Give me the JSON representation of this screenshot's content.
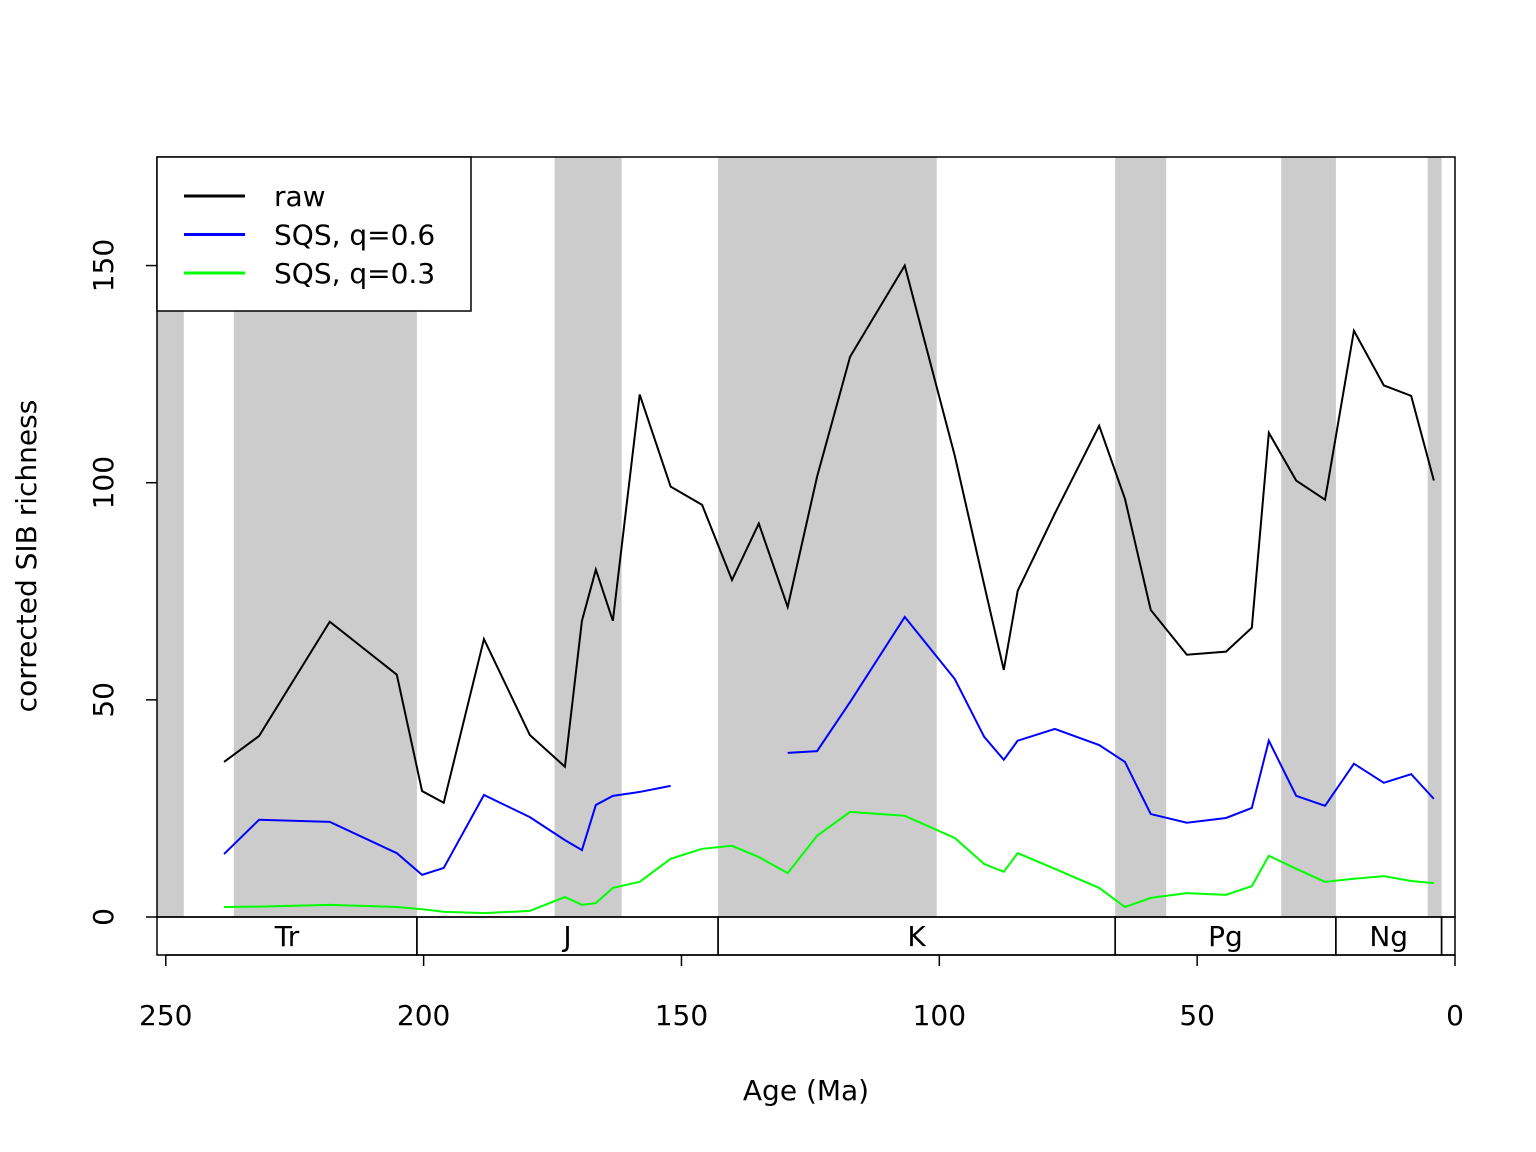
{
  "chart_data": {
    "type": "line",
    "x_label": "Age (Ma)",
    "y_label": "corrected SIB richness",
    "x": [
      238.7,
      231.9,
      218.2,
      205.2,
      200.3,
      196.1,
      188.3,
      179.4,
      172.6,
      169.3,
      166.6,
      163.3,
      158.1,
      152.1,
      146.0,
      140.2,
      135.0,
      129.4,
      123.7,
      117.3,
      106.7,
      97.0,
      91.3,
      87.5,
      84.8,
      77.6,
      69.0,
      64.0,
      59.0,
      52.0,
      44.4,
      39.4,
      36.1,
      30.8,
      25.2,
      19.6,
      13.8,
      8.5,
      4.1
    ],
    "series": [
      {
        "name": "raw",
        "color": "#000000",
        "values": [
          35.7,
          41.7,
          68,
          55.8,
          29,
          26.3,
          64,
          41.9,
          34.6,
          68.2,
          80,
          68.2,
          120.3,
          99.1,
          94.9,
          77.6,
          90.6,
          71.4,
          101.4,
          129,
          150,
          106.2,
          76.5,
          56.9,
          75.1,
          92.9,
          113.1,
          96.3,
          70.7,
          60.4,
          61.1,
          66.6,
          111.5,
          100.5,
          96.1,
          135,
          122.4,
          120,
          100.5
        ]
      },
      {
        "name": "SQS, q=0.6",
        "color": "#0000ff",
        "values": [
          14.5,
          22.4,
          21.9,
          14.7,
          9.7,
          11.3,
          28.1,
          23,
          17.7,
          15.4,
          25.8,
          27.9,
          28.8,
          30.2,
          null,
          null,
          null,
          37.8,
          38.2,
          49.5,
          69.1,
          54.8,
          41.5,
          36.2,
          40.6,
          43.3,
          39.6,
          35.7,
          23.7,
          21.7,
          22.8,
          25.1,
          40.6,
          27.9,
          25.6,
          35.3,
          30.9,
          32.9,
          27.2
        ]
      },
      {
        "name": "SQS, q=0.3",
        "color": "#00ff00",
        "values": [
          2.3,
          2.4,
          2.8,
          2.3,
          1.8,
          1.2,
          0.9,
          1.4,
          4.6,
          2.8,
          3.2,
          6.7,
          8.1,
          13.4,
          15.7,
          16.4,
          13.8,
          10.1,
          18.7,
          24.2,
          23.3,
          18.2,
          12.2,
          10.4,
          14.7,
          11.1,
          6.7,
          2.3,
          4.4,
          5.5,
          5.1,
          7.1,
          14.1,
          11.1,
          8.1,
          8.8,
          9.4,
          8.3,
          7.8
        ]
      }
    ],
    "xlim": [
      251.7,
      0
    ],
    "xticks": [
      250,
      200,
      150,
      100,
      50,
      0
    ],
    "ylim": [
      -8.75,
      175
    ],
    "yticks": [
      0,
      50,
      100,
      150
    ],
    "shaded_intervals": [
      [
        251.7,
        246.5
      ],
      [
        236.8,
        201.3
      ],
      [
        174.6,
        161.6
      ],
      [
        142.9,
        100.5
      ],
      [
        65.9,
        56
      ],
      [
        33.7,
        23.1
      ],
      [
        5.3,
        2.6
      ]
    ],
    "shade_color": "#cccccc",
    "periods": [
      {
        "label": "Tr",
        "start": 251.7,
        "end": 201.3
      },
      {
        "label": "J",
        "start": 201.3,
        "end": 142.9
      },
      {
        "label": "K",
        "start": 142.9,
        "end": 65.9
      },
      {
        "label": "Pg",
        "start": 65.9,
        "end": 23.1
      },
      {
        "label": "Ng",
        "start": 23.1,
        "end": 2.6
      },
      {
        "label": null,
        "start": 2.6,
        "end": 0
      }
    ],
    "legend": "top-left"
  }
}
